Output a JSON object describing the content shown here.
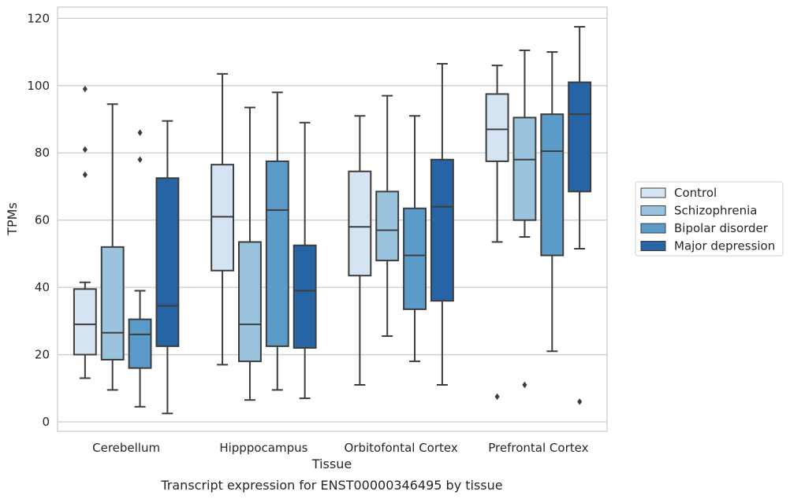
{
  "chart_data": {
    "type": "box",
    "caption": "Transcript expression for ENST00000346495 by tissue",
    "xlabel": "Tissue",
    "ylabel": "TPMs",
    "ylim": [
      -3,
      124
    ],
    "yticks": [
      0,
      20,
      40,
      60,
      80,
      100,
      120
    ],
    "grid": "y",
    "legend_position": "right",
    "categories": [
      "Cerebellum",
      "Hipppocampus",
      "Orbitofontal Cortex",
      "Prefrontal Cortex"
    ],
    "series": [
      {
        "name": "Control",
        "color": "#d5e4f2",
        "boxes": [
          {
            "whislo": 13,
            "q1": 20,
            "med": 29,
            "q3": 39.5,
            "whishi": 41.5,
            "fliers": []
          },
          {
            "whislo": 17,
            "q1": 45,
            "med": 61,
            "q3": 76.5,
            "whishi": 103.5,
            "fliers": []
          },
          {
            "whislo": 11,
            "q1": 43.5,
            "med": 58,
            "q3": 74.5,
            "whishi": 91,
            "fliers": []
          },
          {
            "whislo": 53.5,
            "q1": 77.5,
            "med": 87,
            "q3": 97.5,
            "whishi": 106,
            "fliers": []
          }
        ]
      },
      {
        "name": "Schizophrenia",
        "color": "#9ac3de",
        "boxes": [
          {
            "whislo": 9.5,
            "q1": 18.5,
            "med": 26.5,
            "q3": 52,
            "whishi": 94.5,
            "fliers": []
          },
          {
            "whislo": 6.5,
            "q1": 18,
            "med": 29,
            "q3": 53.5,
            "whishi": 93.5,
            "fliers": []
          },
          {
            "whislo": 25.5,
            "q1": 48,
            "med": 57,
            "q3": 68.5,
            "whishi": 97,
            "fliers": []
          },
          {
            "whislo": 55,
            "q1": 60,
            "med": 78,
            "q3": 90.5,
            "whishi": 110.5,
            "fliers": [
              11
            ]
          }
        ]
      },
      {
        "name": "Bipolar disorder",
        "color": "#5a9bc9",
        "boxes": [
          {
            "whislo": 4.5,
            "q1": 16,
            "med": 26,
            "q3": 30.5,
            "whishi": 39,
            "fliers": [
              78,
              86
            ]
          },
          {
            "whislo": 9.5,
            "q1": 22.5,
            "med": 63,
            "q3": 77.5,
            "whishi": 98,
            "fliers": []
          },
          {
            "whislo": 18,
            "q1": 33.5,
            "med": 49.5,
            "q3": 63.5,
            "whishi": 91,
            "fliers": []
          },
          {
            "whislo": 21,
            "q1": 49.5,
            "med": 80.5,
            "q3": 91.5,
            "whishi": 110,
            "fliers": []
          }
        ]
      },
      {
        "name": "Major depression",
        "color": "#2764a5",
        "boxes": [
          {
            "whislo": 2.5,
            "q1": 22.5,
            "med": 34.5,
            "q3": 72.5,
            "whishi": 89.5,
            "fliers": []
          },
          {
            "whislo": 7,
            "q1": 22,
            "med": 39,
            "q3": 52.5,
            "whishi": 89,
            "fliers": []
          },
          {
            "whislo": 11,
            "q1": 36,
            "med": 64,
            "q3": 78,
            "whishi": 106.5,
            "fliers": []
          },
          {
            "whislo": 51.5,
            "q1": 68.5,
            "med": 91.5,
            "q3": 101,
            "whishi": 117.5,
            "fliers": [
              6
            ]
          }
        ]
      }
    ],
    "extra_fliers": [
      {
        "category": 0,
        "series": 0,
        "value": 73.5
      },
      {
        "category": 0,
        "series": 0,
        "value": 81
      },
      {
        "category": 0,
        "series": 0,
        "value": 99
      },
      {
        "category": 3,
        "series": 0,
        "value": 7.5
      }
    ]
  }
}
